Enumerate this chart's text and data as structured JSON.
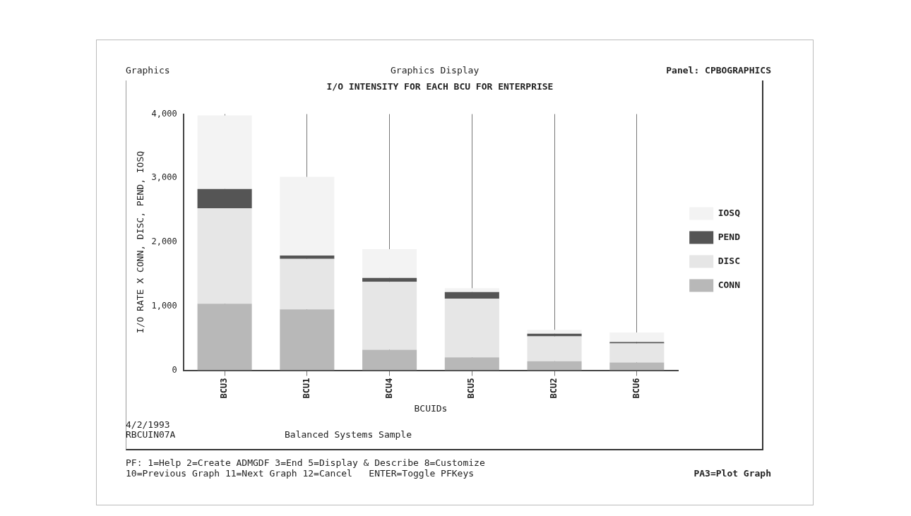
{
  "chart_data": {
    "type": "bar",
    "title": "I/O INTENSITY FOR EACH BCU FOR ENTERPRISE",
    "xlabel": "BCUIDs",
    "ylabel": "I/O RATE X CONN, DISC, PEND, IOSQ",
    "categories": [
      "BCU3",
      "BCU1",
      "BCU4",
      "BCU5",
      "BCU2",
      "BCU6"
    ],
    "stacked": true,
    "series": [
      {
        "name": "CONN",
        "color": "#b8b8b8",
        "values": [
          1040,
          950,
          320,
          200,
          140,
          120
        ]
      },
      {
        "name": "DISC",
        "color": "#e6e6e6",
        "values": [
          1490,
          790,
          1060,
          920,
          390,
          300
        ]
      },
      {
        "name": "PEND",
        "color": "#555555",
        "values": [
          300,
          50,
          60,
          100,
          40,
          20
        ]
      },
      {
        "name": "IOSQ",
        "color": "#f3f3f3",
        "values": [
          1150,
          1230,
          450,
          60,
          60,
          150
        ]
      }
    ],
    "ylim": [
      0,
      4000
    ],
    "yticks": [
      0,
      {
        "value": 1000,
        "label": "1,000"
      },
      {
        "value": 2000,
        "label": "2,000"
      },
      {
        "value": 3000,
        "label": "3,000"
      },
      {
        "value": 4000,
        "label": "4,000"
      }
    ],
    "grid": "x",
    "legend": "right",
    "annotations": [
      "Graphics",
      "Graphics Display",
      "Panel: CPBOGRAPHICS",
      "4/2/1993",
      "RBCUIN07A",
      "Balanced Systems Sample",
      "PF: 1=Help 2=Create ADMGDF 3=End 5=Display & Describe 8=Customize",
      "10=Previous Graph 11=Next Graph 12=Cancel   ENTER=Toggle PFKeys",
      "PA3=Plot Graph"
    ]
  }
}
